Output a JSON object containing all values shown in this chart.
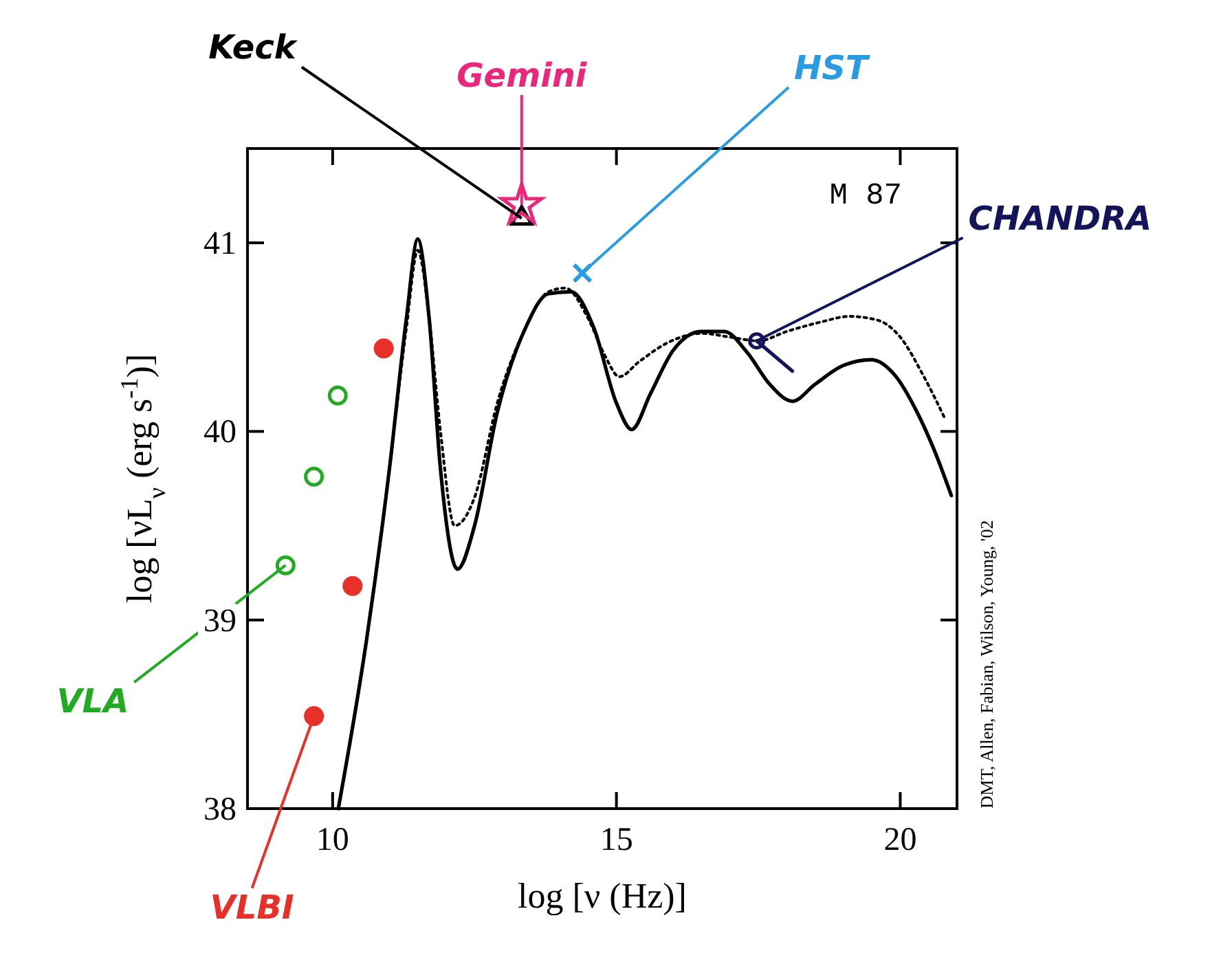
{
  "chart_data": {
    "type": "line",
    "xlabel": "log [ν (Hz)]",
    "ylabel": "log [νL$_{ν}$ (erg s$^{-1}$)]",
    "xlim": [
      8.5,
      21
    ],
    "ylim": [
      38,
      41.5
    ],
    "xticks": [
      10,
      15,
      20
    ],
    "yticks": [
      38,
      39,
      40,
      41
    ],
    "grid": false,
    "annotations": [
      {
        "text": "M 87"
      },
      {
        "text": "DMT, Allen, Fabian, Wilson, Young, '02"
      }
    ],
    "series": [
      {
        "color": "#000000",
        "line_style": "solid",
        "x": [
          10.1,
          10.6,
          11.0,
          11.3,
          11.5,
          11.7,
          11.9,
          12.2,
          12.5,
          12.9,
          13.4,
          13.8,
          14.2,
          14.6,
          15.0,
          15.27,
          15.6,
          16.0,
          16.5,
          16.9,
          17.3,
          17.7,
          18.1,
          18.5,
          19.0,
          19.5,
          19.9,
          20.3,
          20.6,
          20.9
        ],
        "values": [
          38.0,
          38.9,
          39.8,
          40.6,
          41.02,
          40.6,
          39.8,
          39.27,
          39.5,
          40.1,
          40.55,
          40.73,
          40.74,
          40.55,
          40.15,
          40.01,
          40.2,
          40.43,
          40.53,
          40.53,
          40.42,
          40.25,
          40.16,
          40.25,
          40.35,
          40.38,
          40.3,
          40.1,
          39.9,
          39.66
        ]
      },
      {
        "color": "#000000",
        "line_style": "dotted",
        "x": [
          10.1,
          10.6,
          11.0,
          11.3,
          11.5,
          11.7,
          11.9,
          12.15,
          12.5,
          12.9,
          13.4,
          13.8,
          14.1,
          14.5,
          14.8,
          15.05,
          15.4,
          15.9,
          16.5,
          17.0,
          17.5,
          18.0,
          18.6,
          19.1,
          19.6,
          20.0,
          20.4,
          20.8
        ],
        "values": [
          38.0,
          38.9,
          39.8,
          40.55,
          40.96,
          40.6,
          40.0,
          39.5,
          39.65,
          40.15,
          40.55,
          40.74,
          40.76,
          40.6,
          40.4,
          40.29,
          40.37,
          40.47,
          40.52,
          40.5,
          40.48,
          40.53,
          40.58,
          40.61,
          40.59,
          40.5,
          40.3,
          40.06
        ]
      },
      {
        "type": "scatter",
        "name": "VLA",
        "color": "#22aa22",
        "marker": "circle",
        "x": [
          9.17,
          9.67,
          10.09
        ],
        "values": [
          39.29,
          39.76,
          40.19
        ]
      },
      {
        "type": "scatter",
        "name": "VLBI",
        "color": "#e8302a",
        "marker": "circle",
        "x": [
          9.67,
          10.35,
          10.9
        ],
        "values": [
          38.49,
          39.18,
          40.44
        ]
      },
      {
        "type": "scatter",
        "name": "Keck",
        "color": "#000000",
        "marker": "triangle",
        "x": [
          13.33
        ],
        "values": [
          41.13
        ]
      },
      {
        "type": "scatter",
        "name": "Gemini",
        "color": "#e8287a",
        "marker": "star",
        "x": [
          13.33
        ],
        "values": [
          41.2
        ]
      },
      {
        "type": "scatter",
        "name": "HST",
        "color": "#2a9be0",
        "marker": "cross",
        "x": [
          14.4
        ],
        "values": [
          40.84
        ]
      },
      {
        "type": "scatter",
        "name": "CHANDRA",
        "color": "#14145a",
        "marker": "circle",
        "x": [
          17.47
        ],
        "values": [
          40.48
        ]
      },
      {
        "color": "#14145a",
        "line_style": "solid",
        "x": [
          17.47,
          18.1
        ],
        "values": [
          40.48,
          40.32
        ]
      }
    ]
  }
}
